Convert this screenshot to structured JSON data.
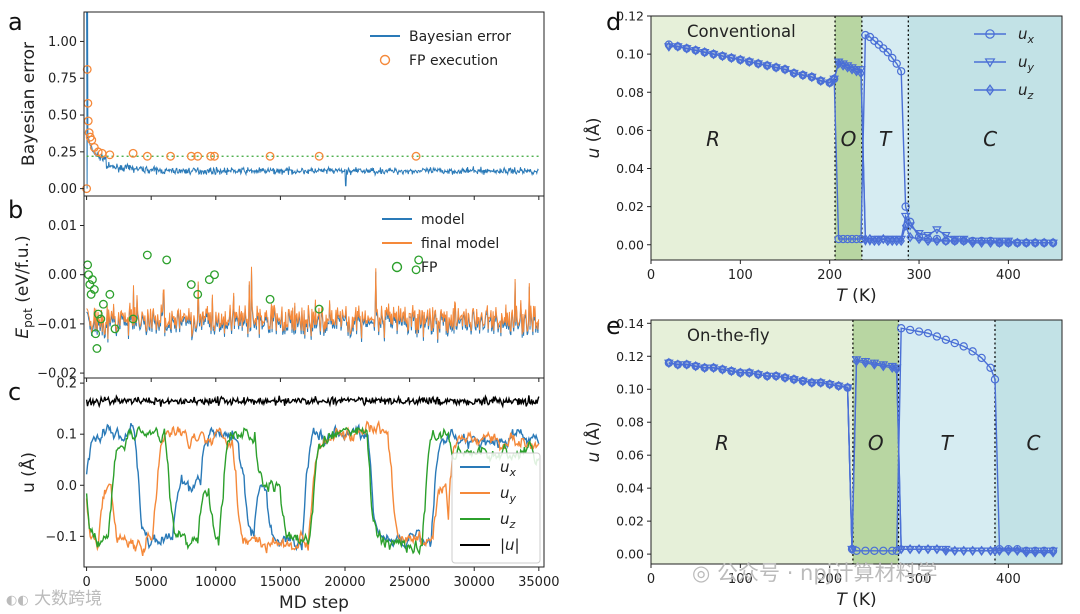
{
  "colors": {
    "blue": "#2a7ab8",
    "orange": "#f5893a",
    "green": "#2ca02c",
    "black": "#000000",
    "u_marker": "#4a6fd6",
    "phase_R": "#e6f0d9",
    "phase_O": "#b8d6a2",
    "phase_T": "#d6ecf2",
    "phase_C": "#c2e2e6",
    "dotted_green": "#3aa63a"
  },
  "watermarks": {
    "left": "大数跨境",
    "right": "公众号 · npj计算材料学"
  },
  "chart_data": [
    {
      "id": "a",
      "panel_label": "a",
      "type": "line",
      "ylabel": "Bayesian error",
      "xlim": [
        0,
        35000
      ],
      "ylim": [
        -0.05,
        1.2
      ],
      "yticks": [
        0.0,
        0.25,
        0.5,
        0.75,
        1.0
      ],
      "ytick_labels": [
        "0.00",
        "0.25",
        "0.50",
        "0.75",
        "1.00"
      ],
      "threshold": 0.22,
      "legend": [
        "Bayesian error",
        "FP execution"
      ],
      "legend_position": "top-right",
      "fp_points": [
        [
          0,
          0.0
        ],
        [
          50,
          0.81
        ],
        [
          100,
          0.58
        ],
        [
          130,
          0.46
        ],
        [
          200,
          0.38
        ],
        [
          280,
          0.35
        ],
        [
          400,
          0.33
        ],
        [
          600,
          0.28
        ],
        [
          900,
          0.25
        ],
        [
          1200,
          0.24
        ],
        [
          1800,
          0.23
        ],
        [
          3600,
          0.24
        ],
        [
          4700,
          0.22
        ],
        [
          6500,
          0.22
        ],
        [
          8100,
          0.22
        ],
        [
          8600,
          0.22
        ],
        [
          9600,
          0.22
        ],
        [
          9900,
          0.22
        ],
        [
          14200,
          0.22
        ],
        [
          18000,
          0.22
        ],
        [
          25500,
          0.22
        ]
      ]
    },
    {
      "id": "b",
      "panel_label": "b",
      "type": "line",
      "ylabel": "E_pot (eV/f.u.)",
      "ylabel_main": "E",
      "ylabel_sub": "pot",
      "ylabel_unit": " (eV/f.u.)",
      "xlim": [
        0,
        35000
      ],
      "ylim": [
        -0.021,
        0.016
      ],
      "yticks": [
        -0.02,
        -0.01,
        0.0,
        0.01
      ],
      "ytick_labels": [
        "−0.02",
        "−0.01",
        "0.00",
        "0.01"
      ],
      "legend": [
        "model",
        "final model",
        "FP"
      ],
      "legend_position": "top-right",
      "fp_points": [
        [
          80,
          0.002
        ],
        [
          150,
          0.0
        ],
        [
          250,
          -0.002
        ],
        [
          350,
          -0.004
        ],
        [
          450,
          -0.001
        ],
        [
          600,
          -0.003
        ],
        [
          700,
          -0.012
        ],
        [
          800,
          -0.015
        ],
        [
          900,
          -0.008
        ],
        [
          1100,
          -0.009
        ],
        [
          1300,
          -0.006
        ],
        [
          1800,
          -0.004
        ],
        [
          2200,
          -0.011
        ],
        [
          3600,
          -0.009
        ],
        [
          4700,
          0.004
        ],
        [
          6200,
          0.003
        ],
        [
          8100,
          -0.002
        ],
        [
          8600,
          -0.004
        ],
        [
          9500,
          -0.001
        ],
        [
          9900,
          0.0
        ],
        [
          14200,
          -0.005
        ],
        [
          18000,
          -0.007
        ],
        [
          25500,
          0.001
        ],
        [
          25700,
          0.003
        ]
      ]
    },
    {
      "id": "c",
      "panel_label": "c",
      "type": "line",
      "ylabel": "u (Å)",
      "xlabel": "MD step",
      "xlim": [
        0,
        35000
      ],
      "ylim": [
        -0.16,
        0.21
      ],
      "xticks": [
        0,
        5000,
        10000,
        15000,
        20000,
        25000,
        30000,
        35000
      ],
      "xtick_labels": [
        "0",
        "5000",
        "10000",
        "15000",
        "20000",
        "25000",
        "30000",
        "35000"
      ],
      "yticks": [
        -0.1,
        0.0,
        0.1,
        0.2
      ],
      "ytick_labels": [
        "−0.1",
        "0.0",
        "0.1",
        "0.2"
      ],
      "legend": [
        "u_x",
        "u_y",
        "u_z",
        "|u|"
      ],
      "legend_labels": [
        "ux",
        "uy",
        "uz",
        "|u|"
      ],
      "legend_position": "bottom-right"
    },
    {
      "id": "d",
      "panel_label": "d",
      "type": "line",
      "title": "Conventional",
      "xlabel": "T (K)",
      "ylabel": "u (Å)",
      "xlim": [
        0,
        460
      ],
      "ylim": [
        -0.008,
        0.12
      ],
      "xticks": [
        0,
        100,
        200,
        300,
        400
      ],
      "xtick_labels": [
        "0",
        "100",
        "200",
        "300",
        "400"
      ],
      "yticks": [
        0.0,
        0.02,
        0.04,
        0.06,
        0.08,
        0.1,
        0.12
      ],
      "ytick_labels": [
        "0.00",
        "0.02",
        "0.04",
        "0.06",
        "0.08",
        "0.10",
        "0.12"
      ],
      "phase_boundaries": [
        206,
        236,
        288
      ],
      "phases": [
        "R",
        "O",
        "T",
        "C"
      ],
      "legend": [
        "u_x",
        "u_y",
        "u_z"
      ],
      "legend_position": "top-right",
      "series": [
        {
          "name": "u_x",
          "marker": "circle",
          "x": [
            20,
            30,
            40,
            50,
            60,
            70,
            80,
            90,
            100,
            110,
            120,
            130,
            140,
            150,
            160,
            170,
            180,
            190,
            200,
            205,
            210,
            215,
            220,
            225,
            230,
            235,
            240,
            245,
            250,
            255,
            260,
            265,
            270,
            275,
            280,
            285,
            290,
            300,
            310,
            320,
            330,
            340,
            350,
            360,
            370,
            380,
            390,
            400,
            410,
            420,
            430,
            440,
            450
          ],
          "y": [
            0.105,
            0.104,
            0.103,
            0.102,
            0.101,
            0.1,
            0.099,
            0.098,
            0.097,
            0.096,
            0.095,
            0.094,
            0.093,
            0.092,
            0.09,
            0.089,
            0.088,
            0.086,
            0.085,
            0.087,
            0.003,
            0.003,
            0.003,
            0.003,
            0.003,
            0.003,
            0.11,
            0.109,
            0.107,
            0.105,
            0.103,
            0.101,
            0.098,
            0.095,
            0.091,
            0.02,
            0.012,
            0.004,
            0.003,
            0.003,
            0.002,
            0.002,
            0.002,
            0.002,
            0.002,
            0.002,
            0.001,
            0.001,
            0.001,
            0.001,
            0.001,
            0.001,
            0.001
          ]
        },
        {
          "name": "u_y",
          "marker": "triangle",
          "x": [
            20,
            30,
            40,
            50,
            60,
            70,
            80,
            90,
            100,
            110,
            120,
            130,
            140,
            150,
            160,
            170,
            180,
            190,
            200,
            205,
            210,
            215,
            220,
            225,
            230,
            235,
            240,
            245,
            250,
            255,
            260,
            265,
            270,
            275,
            280,
            285,
            290,
            300,
            310,
            320,
            330,
            340,
            350,
            360,
            370,
            380,
            390,
            400,
            410,
            420,
            430,
            440,
            450
          ],
          "y": [
            0.104,
            0.104,
            0.103,
            0.102,
            0.101,
            0.1,
            0.099,
            0.098,
            0.097,
            0.096,
            0.095,
            0.094,
            0.093,
            0.092,
            0.09,
            0.089,
            0.088,
            0.086,
            0.085,
            0.087,
            0.096,
            0.095,
            0.094,
            0.093,
            0.092,
            0.092,
            0.002,
            0.002,
            0.003,
            0.003,
            0.003,
            0.003,
            0.003,
            0.003,
            0.003,
            0.015,
            0.01,
            0.006,
            0.005,
            0.008,
            0.005,
            0.003,
            0.003,
            0.002,
            0.002,
            0.002,
            0.002,
            0.002,
            0.001,
            0.001,
            0.001,
            0.001,
            0.001
          ]
        },
        {
          "name": "u_z",
          "marker": "diamond",
          "x": [
            20,
            30,
            40,
            50,
            60,
            70,
            80,
            90,
            100,
            110,
            120,
            130,
            140,
            150,
            160,
            170,
            180,
            190,
            200,
            205,
            210,
            215,
            220,
            225,
            230,
            235,
            240,
            245,
            250,
            255,
            260,
            265,
            270,
            275,
            280,
            285,
            290,
            300,
            310,
            320,
            330,
            340,
            350,
            360,
            370,
            380,
            390,
            400,
            410,
            420,
            430,
            440,
            450
          ],
          "y": [
            0.104,
            0.104,
            0.103,
            0.102,
            0.101,
            0.1,
            0.099,
            0.098,
            0.097,
            0.096,
            0.095,
            0.094,
            0.093,
            0.092,
            0.09,
            0.089,
            0.088,
            0.086,
            0.085,
            0.087,
            0.095,
            0.094,
            0.093,
            0.092,
            0.091,
            0.09,
            0.003,
            0.003,
            0.002,
            0.002,
            0.003,
            0.002,
            0.002,
            0.002,
            0.002,
            0.01,
            0.004,
            0.003,
            0.002,
            0.002,
            0.002,
            0.002,
            0.002,
            0.001,
            0.001,
            0.001,
            0.001,
            0.001,
            0.001,
            0.001,
            0.001,
            0.001,
            0.001
          ]
        }
      ]
    },
    {
      "id": "e",
      "panel_label": "e",
      "type": "line",
      "title": "On-the-fly",
      "xlabel": "T (K)",
      "ylabel": "u (Å)",
      "xlim": [
        0,
        460
      ],
      "ylim": [
        -0.006,
        0.142
      ],
      "xticks": [
        0,
        100,
        200,
        300,
        400
      ],
      "xtick_labels": [
        "0",
        "100",
        "200",
        "300",
        "400"
      ],
      "yticks": [
        0.0,
        0.02,
        0.04,
        0.06,
        0.08,
        0.1,
        0.12,
        0.14
      ],
      "ytick_labels": [
        "0.00",
        "0.02",
        "0.04",
        "0.06",
        "0.08",
        "0.10",
        "0.12",
        "0.14"
      ],
      "phase_boundaries": [
        226,
        277,
        385
      ],
      "phases": [
        "R",
        "O",
        "T",
        "C"
      ],
      "series": [
        {
          "name": "u_x",
          "marker": "circle",
          "x": [
            20,
            30,
            40,
            50,
            60,
            70,
            80,
            90,
            100,
            110,
            120,
            130,
            140,
            150,
            160,
            170,
            180,
            190,
            200,
            210,
            220,
            225,
            230,
            240,
            250,
            260,
            270,
            275,
            280,
            290,
            300,
            310,
            320,
            330,
            340,
            350,
            360,
            370,
            380,
            385,
            390,
            400,
            410,
            420,
            430,
            440,
            450
          ],
          "y": [
            0.116,
            0.115,
            0.115,
            0.114,
            0.113,
            0.113,
            0.112,
            0.111,
            0.11,
            0.11,
            0.109,
            0.108,
            0.108,
            0.107,
            0.106,
            0.105,
            0.104,
            0.104,
            0.103,
            0.102,
            0.101,
            0.003,
            0.002,
            0.002,
            0.002,
            0.002,
            0.002,
            0.002,
            0.137,
            0.136,
            0.135,
            0.134,
            0.132,
            0.13,
            0.128,
            0.126,
            0.123,
            0.119,
            0.113,
            0.106,
            0.003,
            0.003,
            0.003,
            0.002,
            0.002,
            0.002,
            0.002
          ]
        },
        {
          "name": "u_y",
          "marker": "triangle",
          "x": [
            20,
            30,
            40,
            50,
            60,
            70,
            80,
            90,
            100,
            110,
            120,
            130,
            140,
            150,
            160,
            170,
            180,
            190,
            200,
            210,
            220,
            225,
            230,
            240,
            250,
            260,
            270,
            275,
            280,
            290,
            300,
            310,
            320,
            330,
            340,
            350,
            360,
            370,
            380,
            385,
            390,
            400,
            410,
            420,
            430,
            440,
            450
          ],
          "y": [
            0.116,
            0.115,
            0.115,
            0.114,
            0.113,
            0.113,
            0.112,
            0.111,
            0.11,
            0.11,
            0.109,
            0.108,
            0.108,
            0.107,
            0.106,
            0.105,
            0.104,
            0.104,
            0.103,
            0.102,
            0.101,
            0.003,
            0.118,
            0.117,
            0.116,
            0.115,
            0.114,
            0.113,
            0.003,
            0.003,
            0.003,
            0.003,
            0.003,
            0.003,
            0.002,
            0.002,
            0.002,
            0.002,
            0.002,
            0.002,
            0.002,
            0.002,
            0.002,
            0.002,
            0.002,
            0.002,
            0.002
          ]
        },
        {
          "name": "u_z",
          "marker": "diamond",
          "x": [
            20,
            30,
            40,
            50,
            60,
            70,
            80,
            90,
            100,
            110,
            120,
            130,
            140,
            150,
            160,
            170,
            180,
            190,
            200,
            210,
            220,
            225,
            230,
            240,
            250,
            260,
            270,
            275,
            280,
            290,
            300,
            310,
            320,
            330,
            340,
            350,
            360,
            370,
            380,
            385,
            390,
            400,
            410,
            420,
            430,
            440,
            450
          ],
          "y": [
            0.116,
            0.115,
            0.115,
            0.114,
            0.113,
            0.113,
            0.112,
            0.111,
            0.11,
            0.11,
            0.109,
            0.108,
            0.108,
            0.107,
            0.106,
            0.105,
            0.104,
            0.104,
            0.103,
            0.102,
            0.101,
            0.003,
            0.117,
            0.116,
            0.115,
            0.114,
            0.113,
            0.112,
            0.003,
            0.003,
            0.003,
            0.003,
            0.003,
            0.002,
            0.002,
            0.002,
            0.002,
            0.002,
            0.002,
            0.002,
            0.002,
            0.002,
            0.002,
            0.001,
            0.001,
            0.001,
            0.001
          ]
        }
      ]
    }
  ]
}
